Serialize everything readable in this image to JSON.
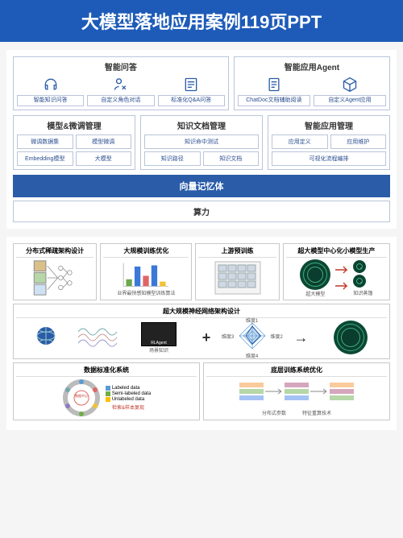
{
  "header": {
    "title": "大模型落地应用案例119页PPT"
  },
  "colors": {
    "header_bg": "#1e5bb8",
    "border": "#b8c5d9",
    "accent": "#2a5ca8",
    "text_blue": "#2a4d8f"
  },
  "top": {
    "row1": [
      {
        "title": "智能问答",
        "items": [
          {
            "icon": "headset-icon",
            "label": "智能知识问答"
          },
          {
            "icon": "user-edit-icon",
            "label": "自定义角色对话"
          },
          {
            "icon": "qa-sheet-icon",
            "label": "标准化Q&A问答"
          }
        ]
      },
      {
        "title": "智能应用Agent",
        "items": [
          {
            "icon": "doc-icon",
            "label": "ChatDoc文档辅助阅读"
          },
          {
            "icon": "cube-icon",
            "label": "自定义Agent应用"
          }
        ]
      }
    ],
    "row2": [
      {
        "title": "模型&微调管理",
        "chips": [
          "微调数据集",
          "模型微调",
          "Embedding模型",
          "大模型"
        ]
      },
      {
        "title": "知识文档管理",
        "chips_wide_first": "知识命中测试",
        "chips": [
          "知识路径",
          "知识文档"
        ]
      },
      {
        "title": "智能应用管理",
        "chips": [
          "应用定义",
          "应用维护"
        ],
        "chips_wide_last": "可视化流程编排"
      }
    ],
    "band1": "向量记忆体",
    "band2": "算力"
  },
  "bottom": {
    "row1": [
      {
        "title": "分布式稀疏架构设计",
        "kind": "thumbs"
      },
      {
        "title": "大规模训练优化",
        "kind": "barchart",
        "chart": {
          "bars": [
            30,
            85,
            45,
            90,
            20
          ],
          "colors": [
            "#6aa84f",
            "#3c78d8",
            "#e06666",
            "#3c78d8",
            "#f1c232"
          ],
          "caption": "业界最快感知模型训练算法"
        }
      },
      {
        "title": "上游预训练",
        "kind": "grid"
      },
      {
        "title": "超大模型中心化小模型生产",
        "kind": "net-flow",
        "labels": [
          "超大模型",
          "知识蒸馏"
        ]
      }
    ],
    "row2": {
      "title": "超大规模神经网络架构设计",
      "scene_label": "场景知识",
      "agent_label": "RLAgent",
      "radar_labels": [
        "维度1",
        "维度2",
        "维度3",
        "维度4"
      ]
    },
    "row3": [
      {
        "title": "数据标准化系统",
        "legend": [
          {
            "color": "#5b9bd5",
            "label": "Labeled data"
          },
          {
            "color": "#70ad47",
            "label": "Semi-labeled data"
          },
          {
            "color": "#ffc000",
            "label": "Unlabeled data"
          }
        ],
        "hub": "数据中心",
        "footer": "检索&样本复现"
      },
      {
        "title": "底层训练系统优化",
        "sub_labels": [
          "分布式参数",
          "特征重算技术"
        ]
      }
    ]
  }
}
